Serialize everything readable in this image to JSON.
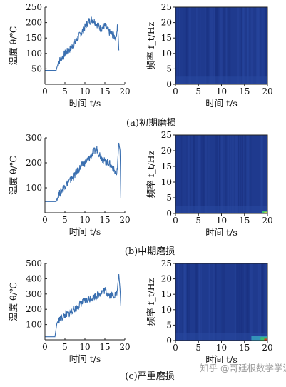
{
  "captions": [
    "(a)初期磨损",
    "(b)中期磨损",
    "(c)严重磨损"
  ],
  "watermark": "知乎 @哥廷根数学学派",
  "temp_ylabel": "温度 θ/℃",
  "freq_ylabel": "频率 f_t/Hz",
  "xlabel": "时间 t/s",
  "colors": {
    "line": "#3a6fb0",
    "spec_bg": "#1f3a8e",
    "spec_dark": "#182f7a",
    "hot_green": "#3fbf70",
    "hot_cyan": "#3ab7c8",
    "hot_yellow": "#d9d23b",
    "hot_red": "#c8402a"
  },
  "chart_data": [
    {
      "type": "line",
      "title": "(a)初期磨损",
      "xlabel": "时间 t/s",
      "ylabel": "温度 θ/℃",
      "xlim": [
        0,
        20
      ],
      "ylim": [
        0,
        250
      ],
      "xticks": [
        0,
        5,
        10,
        15,
        20
      ],
      "yticks": [
        50,
        100,
        150,
        200,
        250
      ],
      "x": [
        0,
        1.0,
        2.8,
        3.0,
        3.5,
        4.5,
        5.0,
        6.0,
        7.0,
        8.0,
        9.0,
        10.0,
        11.0,
        12.0,
        13.0,
        14.0,
        15.0,
        16.0,
        17.0,
        17.8,
        18.2,
        18.5
      ],
      "y": [
        45,
        45,
        45,
        55,
        75,
        90,
        100,
        110,
        125,
        145,
        165,
        185,
        205,
        210,
        195,
        180,
        190,
        170,
        160,
        150,
        195,
        110
      ]
    },
    {
      "type": "heatmap",
      "title": "(a)初期磨损",
      "xlabel": "时间 t/s",
      "ylabel": "频率 f_t/Hz",
      "xlim": [
        0,
        20
      ],
      "ylim": [
        0,
        25
      ],
      "xticks": [
        0,
        5,
        10,
        15,
        20
      ],
      "yticks": [
        0,
        5,
        10,
        15,
        20,
        25
      ],
      "description_values": "mostly low energy; faint vertical bands near t≈10, 14, 17"
    },
    {
      "type": "line",
      "title": "(b)中期磨损",
      "xlabel": "时间 t/s",
      "ylabel": "温度 θ/℃",
      "xlim": [
        0,
        20
      ],
      "ylim": [
        0,
        300
      ],
      "xticks": [
        0,
        5,
        10,
        15,
        20
      ],
      "yticks": [
        100,
        200,
        300
      ],
      "x": [
        0,
        1.0,
        2.8,
        3.0,
        3.5,
        4.5,
        5.0,
        6.0,
        7.0,
        8.0,
        9.0,
        10.0,
        11.0,
        12.0,
        13.0,
        14.0,
        15.0,
        16.0,
        17.0,
        18.0,
        18.5,
        18.8,
        19.0
      ],
      "y": [
        45,
        45,
        45,
        55,
        75,
        95,
        110,
        125,
        140,
        165,
        185,
        200,
        215,
        240,
        255,
        225,
        205,
        200,
        180,
        150,
        280,
        250,
        60
      ]
    },
    {
      "type": "heatmap",
      "title": "(b)中期磨损",
      "xlabel": "时间 t/s",
      "ylabel": "频率 f_t/Hz",
      "xlim": [
        0,
        20
      ],
      "ylim": [
        0,
        25
      ],
      "xticks": [
        0,
        5,
        10,
        15,
        20
      ],
      "yticks": [
        0,
        5,
        10,
        15,
        20,
        25
      ],
      "description_values": "low energy; bright spot near t≈19–20, f≈0–1 Hz"
    },
    {
      "type": "line",
      "title": "(c)严重磨损",
      "xlabel": "时间 t/s",
      "ylabel": "温度 θ/℃",
      "xlim": [
        0,
        20
      ],
      "ylim": [
        0,
        500
      ],
      "xticks": [
        0,
        5,
        10,
        15,
        20
      ],
      "yticks": [
        100,
        200,
        300,
        400,
        500
      ],
      "x": [
        0,
        1.0,
        2.5,
        3.0,
        3.5,
        4.5,
        5.0,
        6.0,
        7.0,
        8.0,
        9.0,
        10.0,
        11.0,
        12.0,
        13.0,
        14.0,
        15.0,
        16.0,
        17.0,
        18.0,
        18.5,
        18.8,
        19.0
      ],
      "y": [
        20,
        20,
        20,
        110,
        130,
        150,
        160,
        170,
        195,
        210,
        240,
        250,
        265,
        280,
        290,
        310,
        325,
        295,
        290,
        300,
        430,
        330,
        220
      ]
    },
    {
      "type": "heatmap",
      "title": "(c)严重磨损",
      "xlabel": "时间 t/s",
      "ylabel": "频率 f_t/Hz",
      "xlim": [
        0,
        20
      ],
      "ylim": [
        0,
        25
      ],
      "xticks": [
        0,
        5,
        10,
        15,
        20
      ],
      "yticks": [
        0,
        5,
        10,
        15,
        20,
        25
      ],
      "description_values": "low energy; bright band near t≈17–20, f≈0–2 Hz"
    }
  ]
}
